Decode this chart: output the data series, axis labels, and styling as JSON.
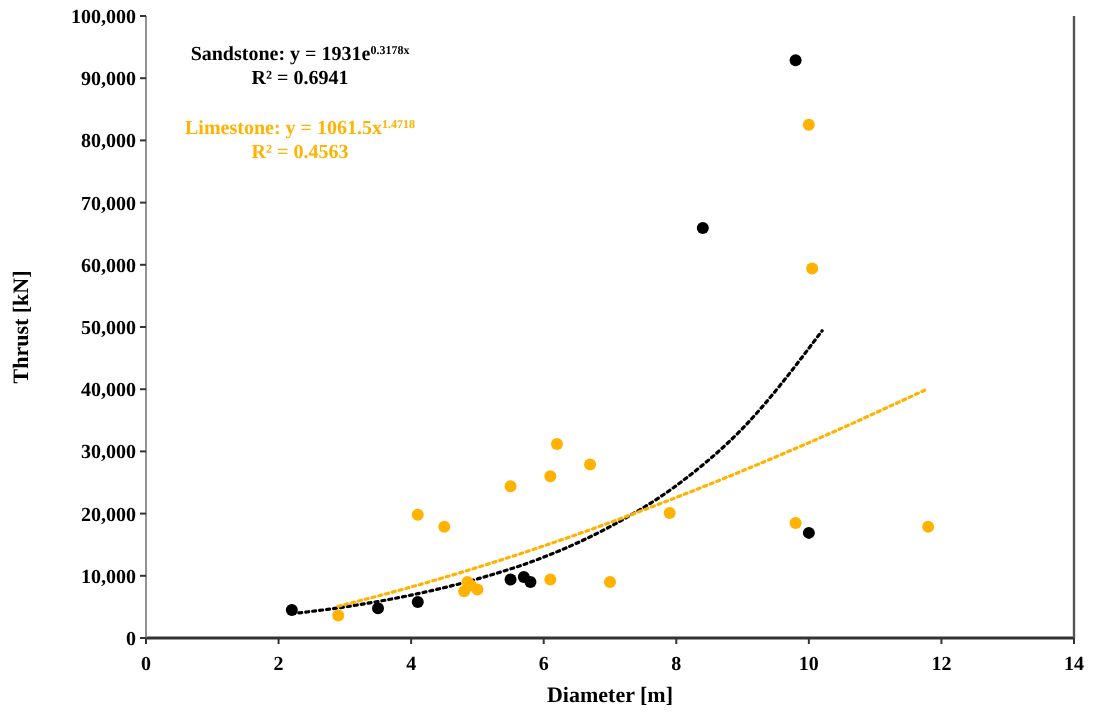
{
  "chart_data": {
    "type": "scatter",
    "xlabel": "Diameter [m]",
    "ylabel": "Thrust [kN]",
    "xlim": [
      0,
      14
    ],
    "xticks": [
      0,
      2,
      4,
      6,
      8,
      10,
      12,
      14
    ],
    "ylim": [
      0,
      100000
    ],
    "yticks": [
      0,
      {
        "value": 10000,
        "label": "10,000"
      },
      {
        "value": 20000,
        "label": "20,000"
      },
      {
        "value": 30000,
        "label": "30,000"
      },
      {
        "value": 40000,
        "label": "40,000"
      },
      {
        "value": 50000,
        "label": "50,000"
      },
      {
        "value": 60000,
        "label": "60,000"
      },
      {
        "value": 70000,
        "label": "70,000"
      },
      {
        "value": 80000,
        "label": "80,000"
      },
      {
        "value": 90000,
        "label": "90,000"
      },
      {
        "value": 100000,
        "label": "100,000"
      }
    ],
    "grid": false,
    "annotations": [
      "Sandstone: y = 1931e$^{0.3178x}$",
      "R² = 0.6941",
      "Limestone: y = 1061.5x$^{1.4718}$",
      "R² = 0.4563"
    ],
    "series": [
      {
        "marker": "circle",
        "color": "#000000",
        "x": [
          2.2,
          3.5,
          4.1,
          5.5,
          5.7,
          5.8,
          8.4,
          9.8,
          10
        ],
        "values": [
          4500,
          4800,
          5800,
          9400,
          9800,
          9000,
          65900,
          92900,
          16900
        ]
      },
      {
        "marker": "circle",
        "color": "#ffb300",
        "x": [
          2.9,
          4.1,
          4.5,
          4.8,
          4.85,
          4.9,
          5.0,
          5.5,
          6.1,
          6.2,
          6.1,
          6.7,
          7.0,
          7.9,
          9.8,
          10.0,
          10.05,
          11.8
        ],
        "values": [
          3600,
          19800,
          17900,
          7500,
          9000,
          8500,
          7800,
          24400,
          26000,
          31200,
          9400,
          27900,
          9000,
          20100,
          18500,
          82500,
          59400,
          17900
        ]
      },
      {
        "type": "line",
        "line_style": "dotted",
        "marker": "none",
        "color": "#000000",
        "x": [
          2.2,
          3,
          4,
          5,
          6,
          7,
          8,
          9,
          10.2
        ],
        "values": [
          3900,
          5000,
          6900,
          9500,
          13000,
          17900,
          24500,
          33700,
          49400
        ]
      },
      {
        "type": "line",
        "line_style": "dotted",
        "marker": "none",
        "color": "#ffb300",
        "x": [
          2.9,
          4,
          6,
          8,
          10,
          11.8
        ],
        "values": [
          5100,
          8200,
          14800,
          22600,
          31400,
          40100
        ]
      }
    ]
  }
}
